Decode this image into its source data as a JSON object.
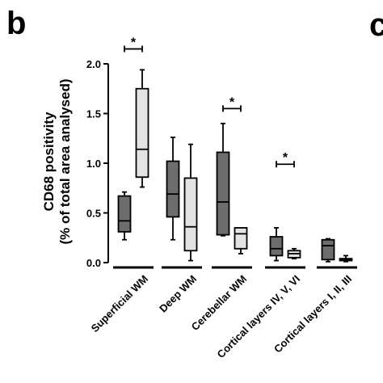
{
  "figure": {
    "panel_letter": "b",
    "next_panel_letter": "c"
  },
  "chart_data": {
    "type": "boxplot",
    "ylabel_line1": "CD68 positivity",
    "ylabel_line2": "(% of total area analysed)",
    "ylim": [
      0,
      2.0
    ],
    "yticks": [
      "0.0",
      "0.5",
      "1.0",
      "1.5",
      "2.0"
    ],
    "grid": false,
    "legend": "none",
    "colors": {
      "series1": "#6d6d6d",
      "series2": "#e3e3e3",
      "stroke": "#000000"
    },
    "categories": [
      "Superficial WM",
      "Deep WM",
      "Cerebellar WM",
      "Cortical layers IV, V, VI",
      "Cortical layers I, II, III"
    ],
    "series": [
      {
        "boxes": [
          {
            "min": 0.23,
            "q1": 0.31,
            "median": 0.42,
            "q3": 0.67,
            "max": 0.71
          },
          {
            "min": 0.23,
            "q1": 0.46,
            "median": 0.69,
            "q3": 1.02,
            "max": 1.26
          },
          {
            "min": 0.27,
            "q1": 0.28,
            "median": 0.61,
            "q3": 1.11,
            "max": 1.4
          },
          {
            "min": 0.02,
            "q1": 0.07,
            "median": 0.14,
            "q3": 0.26,
            "max": 0.35
          },
          {
            "min": 0.01,
            "q1": 0.03,
            "median": 0.17,
            "q3": 0.23,
            "max": 0.24
          }
        ]
      },
      {
        "boxes": [
          {
            "min": 0.76,
            "q1": 0.86,
            "median": 1.14,
            "q3": 1.75,
            "max": 1.94
          },
          {
            "min": 0.02,
            "q1": 0.12,
            "median": 0.36,
            "q3": 0.85,
            "max": 1.19
          },
          {
            "min": 0.09,
            "q1": 0.14,
            "median": 0.29,
            "q3": 0.35,
            "max": 0.35
          },
          {
            "min": 0.04,
            "q1": 0.05,
            "median": 0.09,
            "q3": 0.12,
            "max": 0.14
          },
          {
            "min": 0.01,
            "q1": 0.02,
            "median": 0.03,
            "q3": 0.04,
            "max": 0.07
          }
        ]
      }
    ],
    "significance": [
      {
        "category_index": 0,
        "y": 2.15,
        "label": "*"
      },
      {
        "category_index": 2,
        "y": 1.55,
        "label": "*"
      },
      {
        "category_index": 3,
        "y": 0.99,
        "label": "*"
      }
    ]
  }
}
